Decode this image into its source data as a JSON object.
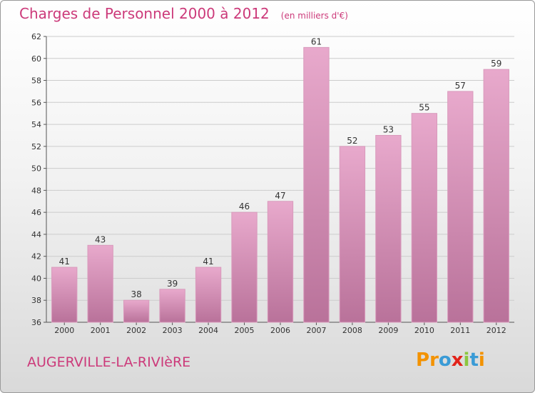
{
  "header": {
    "title": "Charges de Personnel 2000 à 2012",
    "subtitle": "(en milliers d'€)"
  },
  "footer": {
    "commune": "AUGERVILLE-LA-RIVIèRE",
    "logo": "Proxiti",
    "logo_colors": [
      "#f39200",
      "#f39200",
      "#3a9bd6",
      "#e2231a",
      "#8cc63f",
      "#3a9bd6",
      "#f39200"
    ]
  },
  "colors": {
    "bar_light": "#e8a9cc",
    "bar_dark": "#b9729a",
    "grid": "#cccccc"
  },
  "chart_data": {
    "type": "bar",
    "title": "Charges de Personnel 2000 à 2012",
    "subtitle": "(en milliers d'€)",
    "categories": [
      "2000",
      "2001",
      "2002",
      "2003",
      "2004",
      "2005",
      "2006",
      "2007",
      "2008",
      "2009",
      "2010",
      "2011",
      "2012"
    ],
    "values": [
      41,
      43,
      38,
      39,
      41,
      46,
      47,
      61,
      52,
      53,
      55,
      57,
      59
    ],
    "ylim": [
      36,
      62
    ],
    "yticks": [
      36,
      38,
      40,
      42,
      44,
      46,
      48,
      50,
      52,
      54,
      56,
      58,
      60,
      62
    ],
    "grid": true
  }
}
